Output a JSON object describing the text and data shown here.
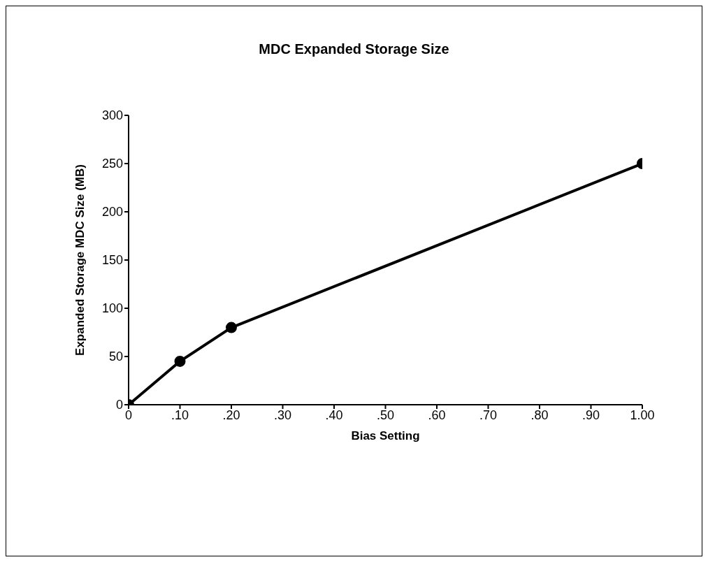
{
  "chart_data": {
    "type": "line",
    "title": "MDC Expanded Storage Size",
    "xlabel": "Bias Setting",
    "ylabel": "Expanded Storage MDC Size (MB)",
    "x": [
      0,
      0.1,
      0.2,
      1.0
    ],
    "series": [
      {
        "color": "#000000",
        "values": [
          0,
          45,
          80,
          250
        ]
      }
    ],
    "xlim": [
      0,
      1
    ],
    "xticks": [
      {
        "value": 0,
        "label": "0"
      },
      {
        "value": 0.1,
        "label": ".10"
      },
      {
        "value": 0.2,
        "label": ".20"
      },
      {
        "value": 0.3,
        "label": ".30"
      },
      {
        "value": 0.4,
        "label": ".40"
      },
      {
        "value": 0.5,
        "label": ".50"
      },
      {
        "value": 0.6,
        "label": ".60"
      },
      {
        "value": 0.7,
        "label": ".70"
      },
      {
        "value": 0.8,
        "label": ".80"
      },
      {
        "value": 0.9,
        "label": ".90"
      },
      {
        "value": 1,
        "label": "1.00"
      }
    ],
    "ylim": [
      0,
      300
    ],
    "yticks": [
      0,
      50,
      100,
      150,
      200,
      250,
      300
    ],
    "grid": false,
    "legend": false,
    "marker": "circle",
    "line_style": "solid"
  }
}
